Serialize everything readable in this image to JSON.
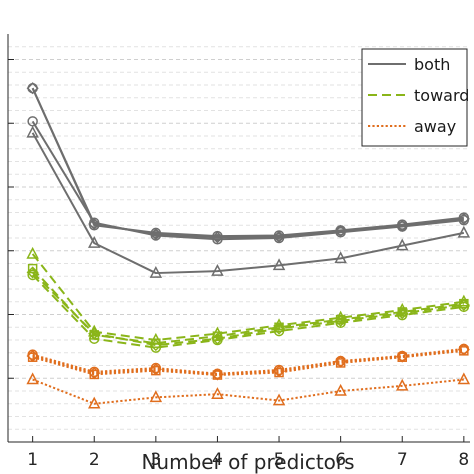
{
  "chart_data": {
    "type": "line",
    "xlabel": "Number of predictors",
    "ylabel": "",
    "x": [
      1,
      2,
      3,
      4,
      5,
      6,
      7,
      8
    ],
    "xlim": [
      0.6,
      8.1
    ],
    "ylim": [
      0,
      6.4
    ],
    "y_major_ticks": [
      1,
      2,
      3,
      4,
      5,
      6
    ],
    "y_minor_step": 0.2,
    "grid": "dashed horizontal",
    "legend_location": "top-right",
    "legend": [
      {
        "name": "both",
        "color": "#6e6e6e",
        "dash": "solid"
      },
      {
        "name": "toward",
        "color": "#8ab519",
        "dash": "dashed"
      },
      {
        "name": "away",
        "color": "#e06e1e",
        "dash": "dotted"
      }
    ],
    "series": [
      {
        "group": "both",
        "marker": "circle",
        "color": "#6e6e6e",
        "dash": "solid",
        "values": [
          5.55,
          3.4,
          3.28,
          3.23,
          3.24,
          3.32,
          3.41,
          3.52
        ]
      },
      {
        "group": "both",
        "marker": "circle",
        "color": "#6e6e6e",
        "dash": "solid",
        "values": [
          5.03,
          3.44,
          3.24,
          3.18,
          3.2,
          3.29,
          3.38,
          3.48
        ]
      },
      {
        "group": "both",
        "marker": "diamond",
        "color": "#6e6e6e",
        "dash": "solid",
        "values": [
          5.55,
          3.42,
          3.26,
          3.21,
          3.22,
          3.31,
          3.39,
          3.5
        ]
      },
      {
        "group": "both",
        "marker": "triangle",
        "color": "#6e6e6e",
        "dash": "solid",
        "values": [
          4.85,
          3.12,
          2.65,
          2.68,
          2.77,
          2.88,
          3.08,
          3.28
        ]
      },
      {
        "group": "toward",
        "marker": "triangle",
        "color": "#8ab519",
        "dash": "dashed",
        "values": [
          2.95,
          1.73,
          1.6,
          1.7,
          1.83,
          1.95,
          2.07,
          2.2
        ]
      },
      {
        "group": "toward",
        "marker": "square",
        "color": "#8ab519",
        "dash": "dashed",
        "values": [
          2.72,
          1.68,
          1.55,
          1.66,
          1.8,
          1.92,
          2.04,
          2.17
        ]
      },
      {
        "group": "toward",
        "marker": "circle",
        "color": "#8ab519",
        "dash": "dashed",
        "values": [
          2.62,
          1.62,
          1.48,
          1.6,
          1.74,
          1.87,
          1.99,
          2.12
        ]
      },
      {
        "group": "toward",
        "marker": "diamond",
        "color": "#8ab519",
        "dash": "dashed",
        "values": [
          2.66,
          1.7,
          1.52,
          1.62,
          1.78,
          1.9,
          2.02,
          2.15
        ]
      },
      {
        "group": "away",
        "marker": "circle",
        "color": "#e06e1e",
        "dash": "dotted",
        "values": [
          1.37,
          1.1,
          1.16,
          1.07,
          1.13,
          1.27,
          1.35,
          1.46
        ]
      },
      {
        "group": "away",
        "marker": "square",
        "color": "#e06e1e",
        "dash": "dotted",
        "values": [
          1.33,
          1.06,
          1.12,
          1.05,
          1.09,
          1.24,
          1.33,
          1.43
        ]
      },
      {
        "group": "away",
        "marker": "diamond",
        "color": "#e06e1e",
        "dash": "dotted",
        "values": [
          1.35,
          1.08,
          1.14,
          1.06,
          1.11,
          1.26,
          1.34,
          1.45
        ]
      },
      {
        "group": "away",
        "marker": "triangle",
        "color": "#e06e1e",
        "dash": "dotted",
        "values": [
          0.98,
          0.6,
          0.7,
          0.75,
          0.65,
          0.8,
          0.88,
          0.98
        ]
      }
    ]
  }
}
